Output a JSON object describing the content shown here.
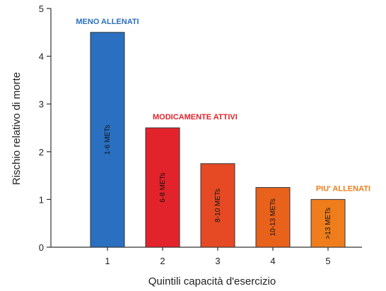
{
  "chart_data": {
    "type": "bar",
    "categories": [
      "1",
      "2",
      "3",
      "4",
      "5"
    ],
    "values": [
      4.5,
      2.5,
      1.75,
      1.25,
      1.0
    ],
    "bar_labels": [
      "1-6 METs",
      "6-8 METs",
      "8-10 METs",
      "10-13 METs",
      ">13 METs"
    ],
    "bar_colors": [
      "#2a6fc0",
      "#e3232b",
      "#e64a24",
      "#e8621c",
      "#ef7d1c"
    ],
    "xlabel": "Quintili capacità d'esercizio",
    "ylabel": "Rischio relativo di morte",
    "ylim": [
      0,
      5
    ],
    "yticks": [
      0,
      1,
      2,
      3,
      4,
      5
    ],
    "grid": false,
    "annotations": [
      {
        "text": "MENO ALLENATI",
        "bar": 0,
        "color": "#2a6fc0"
      },
      {
        "text": "MODICAMENTE ATTIVI",
        "bar": 1,
        "color": "#e3232b"
      },
      {
        "text": "PIU' ALLENATI",
        "bar": 4,
        "color": "#ef7d1c"
      }
    ]
  }
}
